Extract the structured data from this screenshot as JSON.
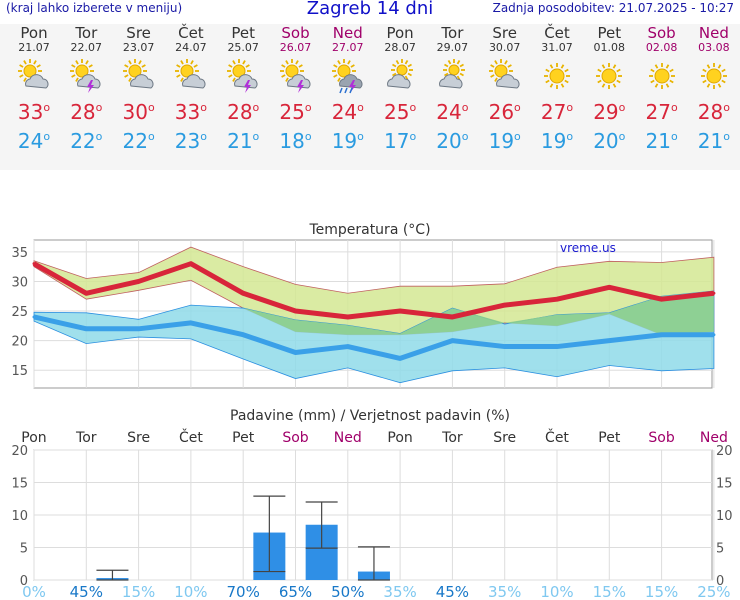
{
  "header": {
    "menu_hint": "(kraj lahko izberete v meniju)",
    "title": "Zagreb 14 dni",
    "updated": "Zadnja posodobitev: 21.07.2025 - 10:27"
  },
  "days": [
    {
      "name": "Pon",
      "date": "21.07",
      "icon": "sun-cloud-icon",
      "max": "33",
      "min": "24",
      "weekend": false
    },
    {
      "name": "Tor",
      "date": "22.07",
      "icon": "sun-cloud-storm-icon",
      "max": "28",
      "min": "22",
      "weekend": false
    },
    {
      "name": "Sre",
      "date": "23.07",
      "icon": "sun-cloud-icon",
      "max": "30",
      "min": "22",
      "weekend": false
    },
    {
      "name": "Čet",
      "date": "24.07",
      "icon": "sun-cloud-icon",
      "max": "33",
      "min": "23",
      "weekend": false
    },
    {
      "name": "Pet",
      "date": "25.07",
      "icon": "sun-cloud-storm-icon",
      "max": "28",
      "min": "21",
      "weekend": false
    },
    {
      "name": "Sob",
      "date": "26.07",
      "icon": "sun-cloud-storm-icon",
      "max": "25",
      "min": "18",
      "weekend": true
    },
    {
      "name": "Ned",
      "date": "27.07",
      "icon": "sun-cloud-rain-storm-icon",
      "max": "24",
      "min": "19",
      "weekend": true
    },
    {
      "name": "Pon",
      "date": "28.07",
      "icon": "cloudy-icon",
      "max": "25",
      "min": "17",
      "weekend": false
    },
    {
      "name": "Tor",
      "date": "29.07",
      "icon": "cloudy-icon",
      "max": "24",
      "min": "20",
      "weekend": false
    },
    {
      "name": "Sre",
      "date": "30.07",
      "icon": "sun-cloud-icon",
      "max": "26",
      "min": "19",
      "weekend": false
    },
    {
      "name": "Čet",
      "date": "31.07",
      "icon": "sun-icon",
      "max": "27",
      "min": "19",
      "weekend": false
    },
    {
      "name": "Pet",
      "date": "01.08",
      "icon": "sun-icon",
      "max": "29",
      "min": "20",
      "weekend": false
    },
    {
      "name": "Sob",
      "date": "02.08",
      "icon": "sun-icon",
      "max": "27",
      "min": "21",
      "weekend": true
    },
    {
      "name": "Ned",
      "date": "03.08",
      "icon": "sun-icon",
      "max": "28",
      "min": "21",
      "weekend": true
    }
  ],
  "chart_data": [
    {
      "type": "line",
      "title": "Temperatura (°C)",
      "watermark": "vreme.us",
      "ylim": [
        12,
        37
      ],
      "yticks": [
        15,
        20,
        25,
        30,
        35
      ],
      "categories": [
        "Pon",
        "Tor",
        "Sre",
        "Čet",
        "Pet",
        "Sob",
        "Ned",
        "Pon",
        "Tor",
        "Sre",
        "Čet",
        "Pet",
        "Sob",
        "Ned"
      ],
      "series": [
        {
          "role": "max",
          "values": [
            33,
            28,
            30,
            33,
            28,
            25,
            24,
            25,
            24,
            26,
            27,
            29,
            27,
            28
          ],
          "color": "#d8253a"
        },
        {
          "role": "min",
          "values": [
            24,
            22,
            22,
            23,
            21,
            18,
            19,
            17,
            20,
            19,
            19,
            20,
            21,
            21
          ],
          "color": "#3aa0e8"
        },
        {
          "role": "max_range_upper",
          "values": [
            33.5,
            30.5,
            31.5,
            35.8,
            32.5,
            29.5,
            28,
            29.2,
            29.2,
            29.6,
            32.4,
            33.4,
            33.2,
            34.1
          ]
        },
        {
          "role": "max_range_lower",
          "values": [
            32.5,
            27,
            28.5,
            30.2,
            25.5,
            21.5,
            21,
            21,
            21.5,
            23,
            22.5,
            24.5,
            21,
            21.5
          ]
        },
        {
          "role": "min_range_upper",
          "values": [
            24.8,
            24.7,
            23.6,
            26,
            25.5,
            23.5,
            22.6,
            21.2,
            25.5,
            22.8,
            24.4,
            24.7,
            27.5,
            28.4
          ]
        },
        {
          "role": "min_range_lower",
          "values": [
            23.3,
            19.5,
            20.6,
            20.3,
            16.9,
            13.6,
            15.4,
            12.9,
            14.9,
            15.4,
            13.9,
            15.8,
            14.9,
            15.3
          ]
        }
      ],
      "colors": {
        "max_band": "#d4e893",
        "min_band": "#8fdbe9",
        "overlap": "#8dce8c"
      }
    },
    {
      "type": "bar",
      "title": "Padavine (mm) / Verjetnost padavin (%)",
      "categories": [
        "Pon",
        "Tor",
        "Sre",
        "Čet",
        "Pet",
        "Sob",
        "Ned",
        "Pon",
        "Tor",
        "Sre",
        "Čet",
        "Pet",
        "Sob",
        "Ned"
      ],
      "weekend": [
        false,
        false,
        false,
        false,
        false,
        true,
        true,
        false,
        false,
        false,
        false,
        false,
        true,
        true
      ],
      "ylim": [
        0,
        20
      ],
      "yticks": [
        0,
        5,
        10,
        15,
        20
      ],
      "values": [
        0,
        0.3,
        0,
        0,
        7.3,
        8.5,
        1.3,
        0,
        0,
        0,
        0,
        0,
        0,
        0
      ],
      "err_low": [
        null,
        0,
        null,
        null,
        1.3,
        4.9,
        0,
        null,
        null,
        null,
        null,
        null,
        null,
        null
      ],
      "err_high": [
        null,
        1.5,
        null,
        null,
        12.9,
        12,
        5.1,
        null,
        null,
        null,
        null,
        null,
        null,
        null
      ],
      "probability": [
        "0%",
        "45%",
        "15%",
        "10%",
        "70%",
        "65%",
        "50%",
        "35%",
        "45%",
        "35%",
        "10%",
        "15%",
        "15%",
        "25%"
      ],
      "colors": {
        "bar": "#2f8fe6",
        "err": "#444444",
        "prob_low": "#7fc8f0",
        "prob_high": "#1878c8"
      }
    }
  ]
}
